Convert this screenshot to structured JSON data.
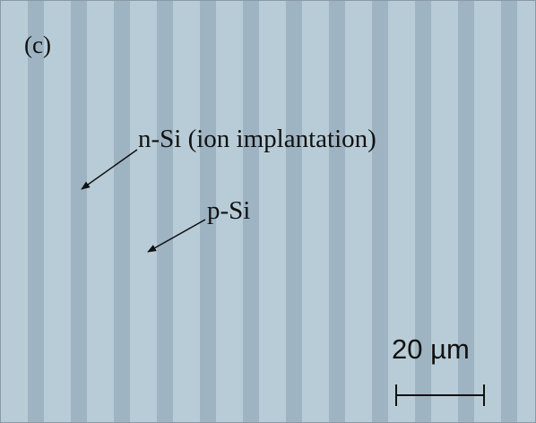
{
  "panel_label": "(c)",
  "annotations": [
    {
      "label": "n-Si (ion implantation)"
    },
    {
      "label": "p-Si"
    }
  ],
  "scale_bar": {
    "label": "20 µm"
  }
}
